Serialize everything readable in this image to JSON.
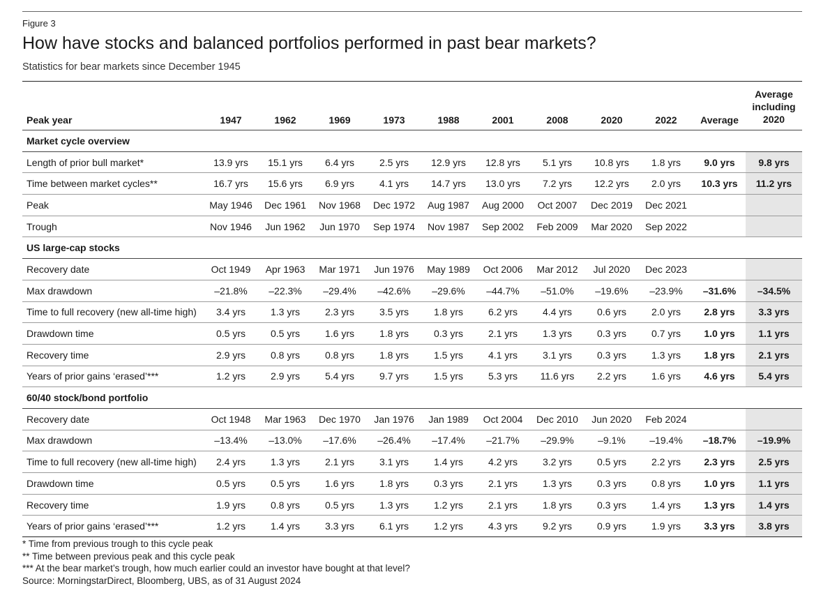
{
  "figure_label": "Figure 3",
  "title": "How have stocks and balanced portfolios performed in past bear markets?",
  "subtitle": "Statistics for bear markets since December 1945",
  "table": {
    "header": {
      "label": "Peak year",
      "years": [
        "1947",
        "1962",
        "1969",
        "1973",
        "1988",
        "2001",
        "2008",
        "2020",
        "2022"
      ],
      "average": "Average",
      "average_incl": "Average including 2020"
    },
    "sections": [
      {
        "title": "Market cycle overview",
        "rows": [
          {
            "label": "Length of prior bull market*",
            "values": [
              "13.9 yrs",
              "15.1 yrs",
              "6.4 yrs",
              "2.5 yrs",
              "12.9 yrs",
              "12.8 yrs",
              "5.1 yrs",
              "10.8 yrs",
              "1.8 yrs"
            ],
            "avg": "9.0 yrs",
            "avg_incl": "9.8 yrs"
          },
          {
            "label": "Time between market cycles**",
            "values": [
              "16.7 yrs",
              "15.6 yrs",
              "6.9 yrs",
              "4.1 yrs",
              "14.7 yrs",
              "13.0 yrs",
              "7.2 yrs",
              "12.2 yrs",
              "2.0 yrs"
            ],
            "avg": "10.3 yrs",
            "avg_incl": "11.2 yrs"
          },
          {
            "label": "Peak",
            "values": [
              "May 1946",
              "Dec 1961",
              "Nov 1968",
              "Dec 1972",
              "Aug 1987",
              "Aug 2000",
              "Oct 2007",
              "Dec 2019",
              "Dec 2021"
            ],
            "avg": "",
            "avg_incl": ""
          },
          {
            "label": "Trough",
            "values": [
              "Nov 1946",
              "Jun 1962",
              "Jun 1970",
              "Sep 1974",
              "Nov 1987",
              "Sep 2002",
              "Feb 2009",
              "Mar 2020",
              "Sep 2022"
            ],
            "avg": "",
            "avg_incl": ""
          }
        ]
      },
      {
        "title": "US large-cap stocks",
        "rows": [
          {
            "label": "Recovery date",
            "values": [
              "Oct 1949",
              "Apr 1963",
              "Mar 1971",
              "Jun 1976",
              "May 1989",
              "Oct 2006",
              "Mar 2012",
              "Jul 2020",
              "Dec 2023"
            ],
            "avg": "",
            "avg_incl": ""
          },
          {
            "label": "Max drawdown",
            "values": [
              "–21.8%",
              "–22.3%",
              "–29.4%",
              "–42.6%",
              "–29.6%",
              "–44.7%",
              "–51.0%",
              "–19.6%",
              "–23.9%"
            ],
            "avg": "–31.6%",
            "avg_incl": "–34.5%"
          },
          {
            "label": "Time to full recovery (new all-time high)",
            "values": [
              "3.4 yrs",
              "1.3 yrs",
              "2.3 yrs",
              "3.5 yrs",
              "1.8 yrs",
              "6.2 yrs",
              "4.4 yrs",
              "0.6 yrs",
              "2.0 yrs"
            ],
            "avg": "2.8 yrs",
            "avg_incl": "3.3 yrs"
          },
          {
            "label": "Drawdown time",
            "values": [
              "0.5 yrs",
              "0.5 yrs",
              "1.6 yrs",
              "1.8 yrs",
              "0.3 yrs",
              "2.1 yrs",
              "1.3 yrs",
              "0.3 yrs",
              "0.7 yrs"
            ],
            "avg": "1.0 yrs",
            "avg_incl": "1.1 yrs"
          },
          {
            "label": "Recovery time",
            "values": [
              "2.9 yrs",
              "0.8 yrs",
              "0.8 yrs",
              "1.8 yrs",
              "1.5 yrs",
              "4.1 yrs",
              "3.1 yrs",
              "0.3 yrs",
              "1.3 yrs"
            ],
            "avg": "1.8 yrs",
            "avg_incl": "2.1 yrs"
          },
          {
            "label": "Years of prior gains ‘erased’***",
            "values": [
              "1.2 yrs",
              "2.9 yrs",
              "5.4 yrs",
              "9.7 yrs",
              "1.5 yrs",
              "5.3 yrs",
              "11.6 yrs",
              "2.2 yrs",
              "1.6 yrs"
            ],
            "avg": "4.6 yrs",
            "avg_incl": "5.4 yrs"
          }
        ]
      },
      {
        "title": "60/40 stock/bond portfolio",
        "rows": [
          {
            "label": "Recovery date",
            "values": [
              "Oct 1948",
              "Mar 1963",
              "Dec 1970",
              "Jan 1976",
              "Jan 1989",
              "Oct 2004",
              "Dec 2010",
              "Jun 2020",
              "Feb 2024"
            ],
            "avg": "",
            "avg_incl": ""
          },
          {
            "label": "Max drawdown",
            "values": [
              "–13.4%",
              "–13.0%",
              "–17.6%",
              "–26.4%",
              "–17.4%",
              "–21.7%",
              "–29.9%",
              "–9.1%",
              "–19.4%"
            ],
            "avg": "–18.7%",
            "avg_incl": "–19.9%"
          },
          {
            "label": "Time to full recovery (new all-time high)",
            "values": [
              "2.4 yrs",
              "1.3 yrs",
              "2.1 yrs",
              "3.1 yrs",
              "1.4 yrs",
              "4.2 yrs",
              "3.2 yrs",
              "0.5 yrs",
              "2.2 yrs"
            ],
            "avg": "2.3 yrs",
            "avg_incl": "2.5 yrs"
          },
          {
            "label": "Drawdown time",
            "values": [
              "0.5 yrs",
              "0.5 yrs",
              "1.6 yrs",
              "1.8 yrs",
              "0.3 yrs",
              "2.1 yrs",
              "1.3 yrs",
              "0.3 yrs",
              "0.8 yrs"
            ],
            "avg": "1.0 yrs",
            "avg_incl": "1.1 yrs"
          },
          {
            "label": "Recovery time",
            "values": [
              "1.9 yrs",
              "0.8 yrs",
              "0.5 yrs",
              "1.3 yrs",
              "1.2 yrs",
              "2.1 yrs",
              "1.8 yrs",
              "0.3 yrs",
              "1.4 yrs"
            ],
            "avg": "1.3 yrs",
            "avg_incl": "1.4 yrs"
          },
          {
            "label": "Years of prior gains ‘erased’***",
            "values": [
              "1.2 yrs",
              "1.4 yrs",
              "3.3 yrs",
              "6.1 yrs",
              "1.2 yrs",
              "4.3 yrs",
              "9.2 yrs",
              "0.9 yrs",
              "1.9 yrs"
            ],
            "avg": "3.3 yrs",
            "avg_incl": "3.8 yrs"
          }
        ]
      }
    ]
  },
  "footnotes": [
    "* Time from previous trough to this cycle peak",
    "** Time between previous peak and this cycle peak",
    "*** At the bear market’s trough, how much earlier could an investor have bought at that level?",
    "Source: MorningstarDirect, Bloomberg, UBS, as of 31 August 2024"
  ],
  "colors": {
    "text": "#1a1a1a",
    "shade": "#e6e6e6",
    "rule": "#222222"
  }
}
